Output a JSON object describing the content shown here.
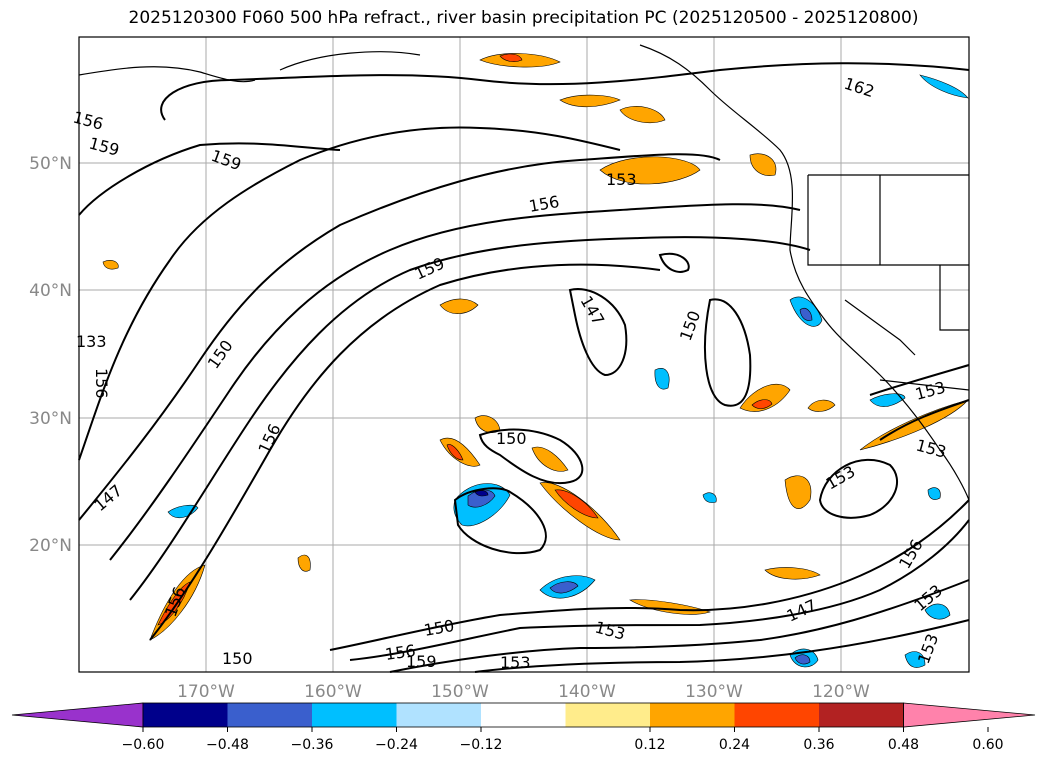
{
  "title": "2025120300 F060 500 hPa refract., river basin precipitation PC (2025120500 - 2025120800)",
  "lat_labels": [
    "50°N",
    "40°N",
    "30°N",
    "20°N"
  ],
  "lon_labels": [
    "170°W",
    "160°W",
    "150°W",
    "140°W",
    "130°W",
    "120°W"
  ],
  "contour_labels": [
    "156",
    "159",
    "159",
    "162",
    "153",
    "156",
    "159",
    "147",
    "150",
    "150",
    "153",
    "156",
    "150",
    "147",
    "156",
    "150",
    "150",
    "156",
    "159",
    "153",
    "147",
    "153",
    "153",
    "153",
    "156",
    "153",
    "153",
    "133",
    "156",
    "153"
  ],
  "colorbar": {
    "ticks": [
      "−0.60",
      "−0.48",
      "−0.36",
      "−0.24",
      "−0.12",
      "0.12",
      "0.24",
      "0.36",
      "0.48",
      "0.60"
    ],
    "colors": [
      "#9932cc",
      "#00008b",
      "#3a5fcd",
      "#00bfff",
      "#b0e2ff",
      "#ffffff",
      "#ffec8b",
      "#ffa500",
      "#ff4500",
      "#b22222",
      "#ff82ab"
    ]
  }
}
